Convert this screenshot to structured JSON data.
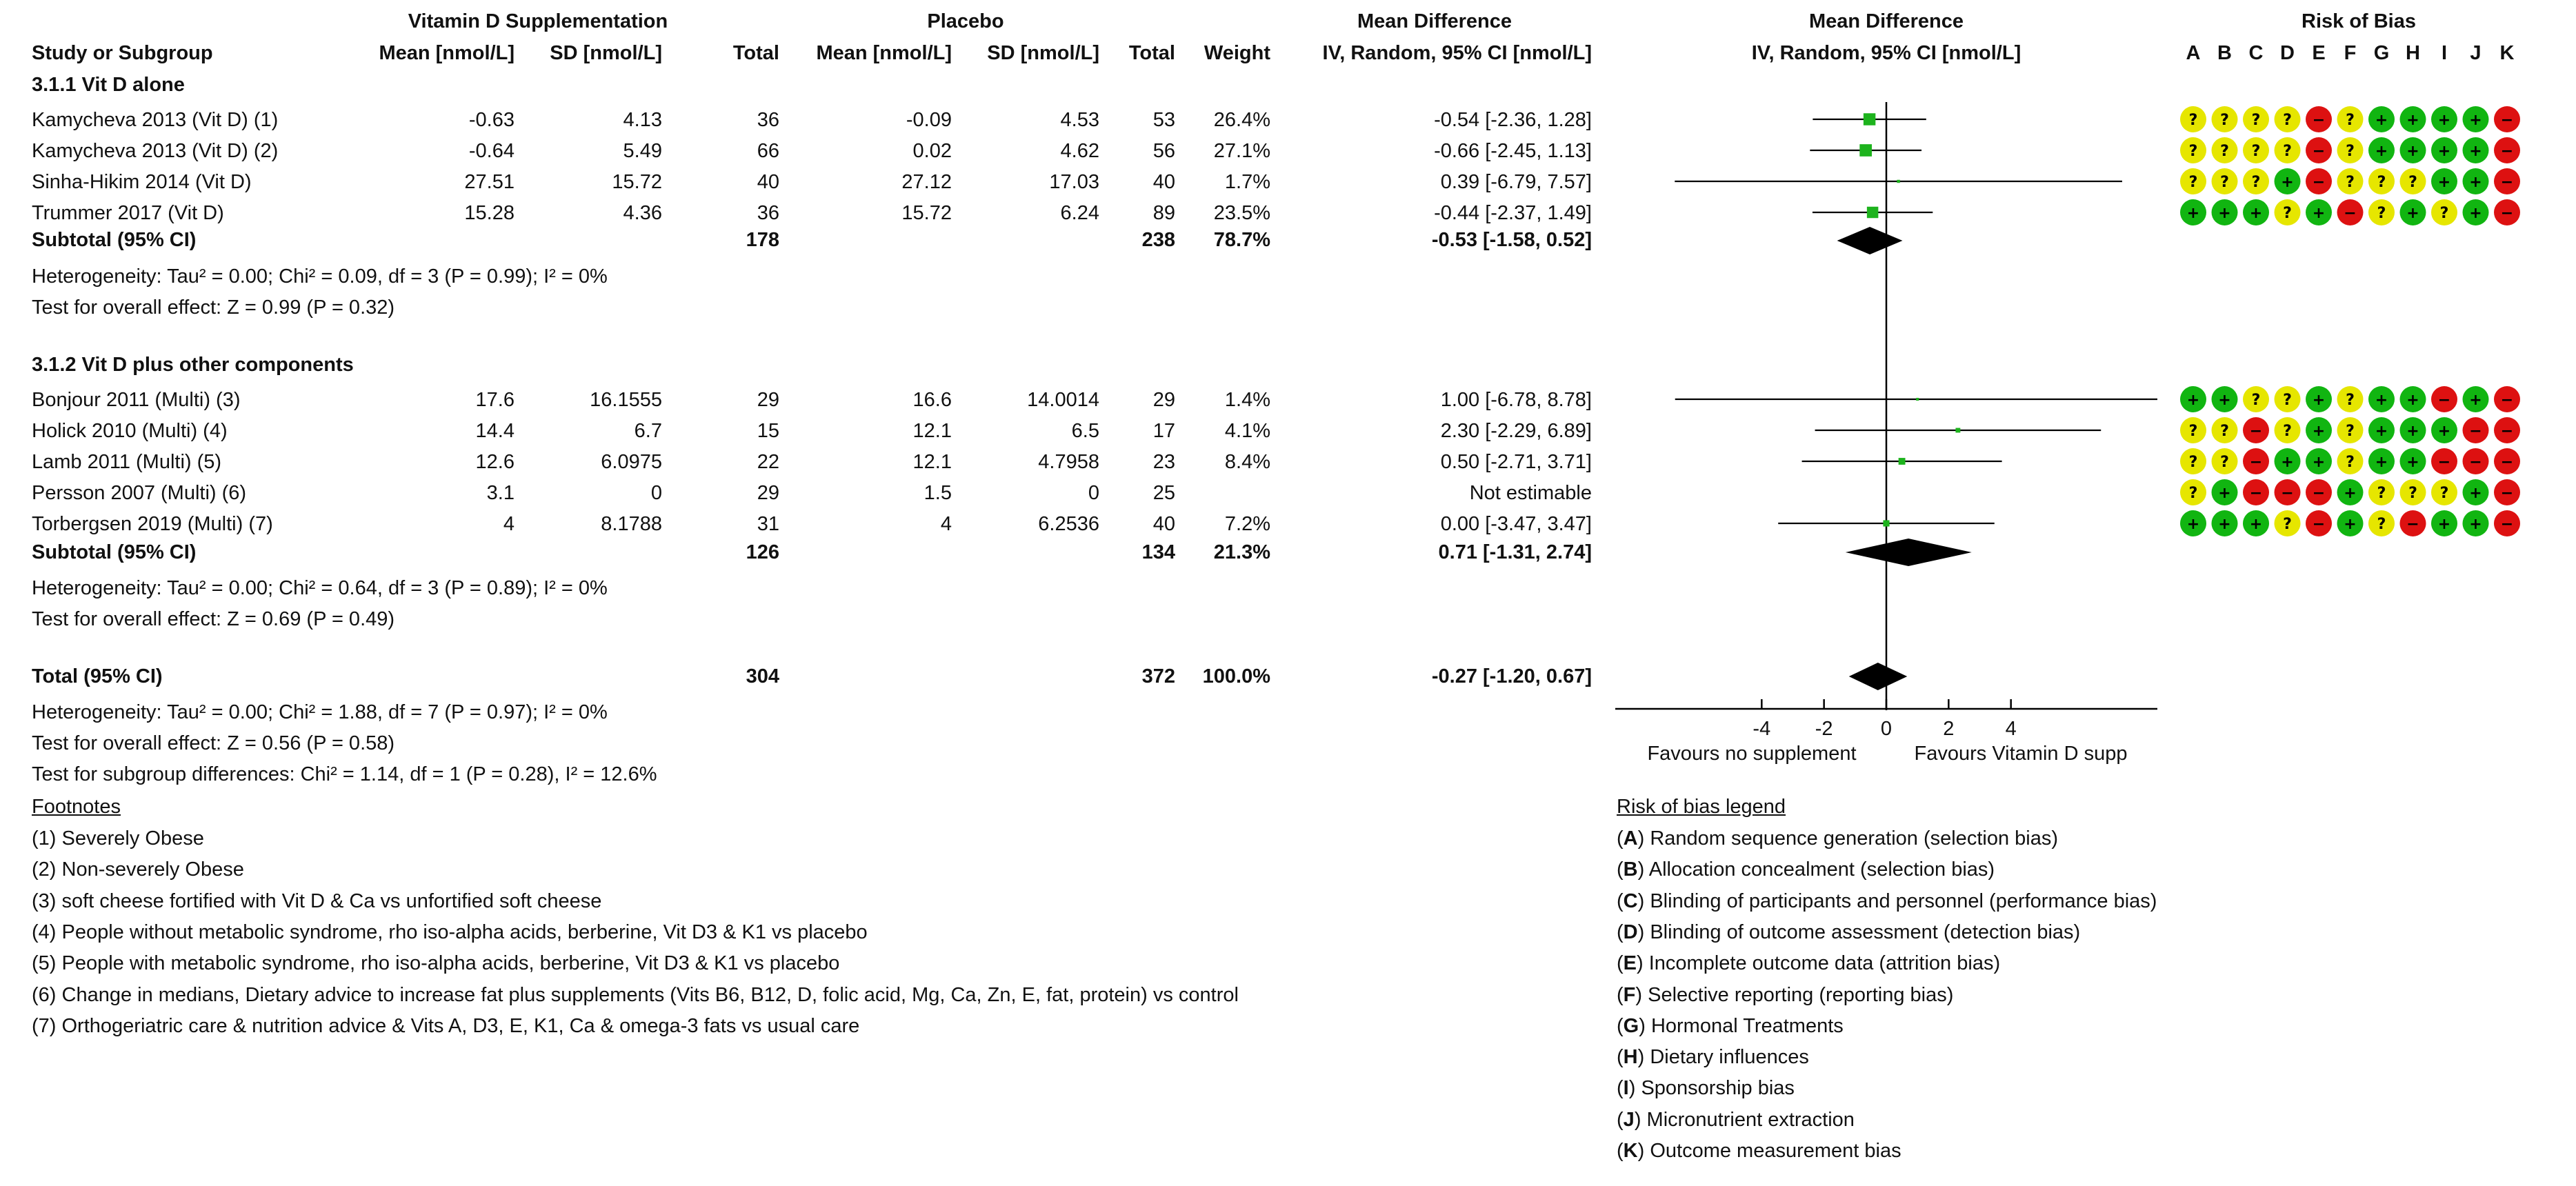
{
  "header": {
    "study_col": "Study or Subgroup",
    "exp_group": "Vitamin D Supplementation",
    "ctl_group": "Placebo",
    "mean": "Mean [nmol/L]",
    "sd": "SD [nmol/L]",
    "total": "Total",
    "weight": "Weight",
    "md_title": "Mean Difference",
    "md_sub": "IV, Random, 95% CI [nmol/L]",
    "plot_title": "Mean Difference",
    "plot_sub": "IV, Random, 95% CI [nmol/L]",
    "rob_title": "Risk of Bias",
    "rob_letters": [
      "A",
      "B",
      "C",
      "D",
      "E",
      "F",
      "G",
      "H",
      "I",
      "J",
      "K"
    ]
  },
  "groups": [
    {
      "title": "3.1.1 Vit D alone",
      "subtotal": {
        "label": "Subtotal (95% CI)",
        "e_total": "178",
        "c_total": "238",
        "weight": "78.7%",
        "ci": "-0.53 [-1.58, 0.52]"
      },
      "heterogeneity": "Heterogeneity: Tau² = 0.00; Chi² = 0.09, df = 3 (P = 0.99); I² = 0%",
      "overall": "Test for overall effect: Z = 0.99 (P = 0.32)"
    },
    {
      "title": "3.1.2 Vit D plus other components",
      "subtotal": {
        "label": "Subtotal (95% CI)",
        "e_total": "126",
        "c_total": "134",
        "weight": "21.3%",
        "ci": "0.71 [-1.31, 2.74]"
      },
      "heterogeneity": "Heterogeneity: Tau² = 0.00; Chi² = 0.64, df = 3 (P = 0.89); I² = 0%",
      "overall": "Test for overall effect: Z = 0.69 (P = 0.49)"
    }
  ],
  "studies": [
    {
      "name": "Kamycheva 2013 (Vit D) (1)",
      "e_mean": "-0.63",
      "e_sd": "4.13",
      "e_total": "36",
      "c_mean": "-0.09",
      "c_sd": "4.53",
      "c_total": "53",
      "weight": "26.4%",
      "ci": "-0.54 [-2.36, 1.28]",
      "rob": [
        "?",
        "?",
        "?",
        "?",
        "-",
        "?",
        "+",
        "+",
        "+",
        "+",
        "-"
      ]
    },
    {
      "name": "Kamycheva 2013 (Vit D) (2)",
      "e_mean": "-0.64",
      "e_sd": "5.49",
      "e_total": "66",
      "c_mean": "0.02",
      "c_sd": "4.62",
      "c_total": "56",
      "weight": "27.1%",
      "ci": "-0.66 [-2.45, 1.13]",
      "rob": [
        "?",
        "?",
        "?",
        "?",
        "-",
        "?",
        "+",
        "+",
        "+",
        "+",
        "-"
      ]
    },
    {
      "name": "Sinha-Hikim 2014 (Vit D)",
      "e_mean": "27.51",
      "e_sd": "15.72",
      "e_total": "40",
      "c_mean": "27.12",
      "c_sd": "17.03",
      "c_total": "40",
      "weight": "1.7%",
      "ci": "0.39 [-6.79, 7.57]",
      "rob": [
        "?",
        "?",
        "?",
        "+",
        "-",
        "?",
        "?",
        "?",
        "+",
        "+",
        "-"
      ]
    },
    {
      "name": "Trummer 2017 (Vit D)",
      "e_mean": "15.28",
      "e_sd": "4.36",
      "e_total": "36",
      "c_mean": "15.72",
      "c_sd": "6.24",
      "c_total": "89",
      "weight": "23.5%",
      "ci": "-0.44 [-2.37, 1.49]",
      "rob": [
        "+",
        "+",
        "+",
        "?",
        "+",
        "-",
        "?",
        "+",
        "?",
        "+",
        "-"
      ]
    },
    {
      "name": "Bonjour 2011 (Multi) (3)",
      "e_mean": "17.6",
      "e_sd": "16.1555",
      "e_total": "29",
      "c_mean": "16.6",
      "c_sd": "14.0014",
      "c_total": "29",
      "weight": "1.4%",
      "ci": "1.00 [-6.78, 8.78]",
      "rob": [
        "+",
        "+",
        "?",
        "?",
        "+",
        "?",
        "+",
        "+",
        "-",
        "+",
        "-"
      ]
    },
    {
      "name": "Holick 2010 (Multi) (4)",
      "e_mean": "14.4",
      "e_sd": "6.7",
      "e_total": "15",
      "c_mean": "12.1",
      "c_sd": "6.5",
      "c_total": "17",
      "weight": "4.1%",
      "ci": "2.30 [-2.29, 6.89]",
      "rob": [
        "?",
        "?",
        "-",
        "?",
        "+",
        "?",
        "+",
        "+",
        "+",
        "-",
        "-"
      ]
    },
    {
      "name": "Lamb 2011 (Multi) (5)",
      "e_mean": "12.6",
      "e_sd": "6.0975",
      "e_total": "22",
      "c_mean": "12.1",
      "c_sd": "4.7958",
      "c_total": "23",
      "weight": "8.4%",
      "ci": "0.50 [-2.71, 3.71]",
      "rob": [
        "?",
        "?",
        "-",
        "+",
        "+",
        "?",
        "+",
        "+",
        "-",
        "-",
        "-"
      ]
    },
    {
      "name": "Persson 2007 (Multi) (6)",
      "e_mean": "3.1",
      "e_sd": "0",
      "e_total": "29",
      "c_mean": "1.5",
      "c_sd": "0",
      "c_total": "25",
      "weight": "",
      "ci": "Not estimable",
      "rob": [
        "?",
        "+",
        "-",
        "-",
        "-",
        "+",
        "?",
        "?",
        "?",
        "+",
        "-"
      ]
    },
    {
      "name": "Torbergsen 2019 (Multi) (7)",
      "e_mean": "4",
      "e_sd": "8.1788",
      "e_total": "31",
      "c_mean": "4",
      "c_sd": "6.2536",
      "c_total": "40",
      "weight": "7.2%",
      "ci": "0.00 [-3.47, 3.47]",
      "rob": [
        "+",
        "+",
        "+",
        "?",
        "-",
        "+",
        "?",
        "-",
        "+",
        "+",
        "-"
      ]
    }
  ],
  "total": {
    "label": "Total (95% CI)",
    "e_total": "304",
    "c_total": "372",
    "weight": "100.0%",
    "ci": "-0.27 [-1.20, 0.67]",
    "heterogeneity": "Heterogeneity: Tau² = 0.00; Chi² = 1.88, df = 7 (P = 0.97); I² = 0%",
    "overall": "Test for overall effect: Z = 0.56 (P = 0.58)",
    "subgroup": "Test for subgroup differences: Chi² = 1.14, df = 1 (P = 0.28), I² = 12.6%"
  },
  "footnotes": {
    "title": "Footnotes",
    "items": [
      "(1) Severely Obese",
      "(2) Non-severely Obese",
      "(3) soft cheese fortified with Vit D & Ca vs unfortified soft cheese",
      "(4) People without metabolic syndrome, rho iso-alpha acids, berberine, Vit D3 & K1 vs placebo",
      "(5) People with metabolic syndrome, rho iso-alpha acids, berberine, Vit D3 & K1 vs placebo",
      "(6) Change in medians, Dietary advice to increase fat plus supplements (Vits B6, B12, D, folic acid, Mg, Ca, Zn, E, fat, protein) vs control",
      "(7) Orthogeriatric care & nutrition advice & Vits A, D3, E, K1, Ca & omega-3 fats vs usual care"
    ]
  },
  "legend": {
    "title": "Risk of bias legend",
    "items": [
      {
        "key": "A",
        "text": "Random sequence generation (selection bias)"
      },
      {
        "key": "B",
        "text": "Allocation concealment (selection bias)"
      },
      {
        "key": "C",
        "text": "Blinding of participants and personnel (performance bias)"
      },
      {
        "key": "D",
        "text": "Blinding of outcome assessment (detection bias)"
      },
      {
        "key": "E",
        "text": "Incomplete outcome data (attrition bias)"
      },
      {
        "key": "F",
        "text": "Selective reporting (reporting bias)"
      },
      {
        "key": "G",
        "text": "Hormonal Treatments"
      },
      {
        "key": "H",
        "text": "Dietary influences"
      },
      {
        "key": "I",
        "text": "Sponsorship bias"
      },
      {
        "key": "J",
        "text": "Micronutrient extraction"
      },
      {
        "key": "K",
        "text": "Outcome measurement bias"
      }
    ]
  },
  "chart_data": {
    "type": "forest",
    "title": "Mean Difference",
    "xlabel_left": "Favours no supplement",
    "xlabel_right": "Favours Vitamin D supp",
    "xlim": [
      -8.7,
      8.7
    ],
    "xticks": [
      -4,
      -2,
      0,
      2,
      4
    ],
    "studies": [
      {
        "name": "Kamycheva 2013 (Vit D) (1)",
        "md": -0.54,
        "lo": -2.36,
        "hi": 1.28,
        "weight": 26.4
      },
      {
        "name": "Kamycheva 2013 (Vit D) (2)",
        "md": -0.66,
        "lo": -2.45,
        "hi": 1.13,
        "weight": 27.1
      },
      {
        "name": "Sinha-Hikim 2014 (Vit D)",
        "md": 0.39,
        "lo": -6.79,
        "hi": 7.57,
        "weight": 1.7
      },
      {
        "name": "Trummer 2017 (Vit D)",
        "md": -0.44,
        "lo": -2.37,
        "hi": 1.49,
        "weight": 23.5
      },
      {
        "name": "Bonjour 2011 (Multi) (3)",
        "md": 1.0,
        "lo": -6.78,
        "hi": 8.78,
        "weight": 1.4
      },
      {
        "name": "Holick 2010 (Multi) (4)",
        "md": 2.3,
        "lo": -2.29,
        "hi": 6.89,
        "weight": 4.1
      },
      {
        "name": "Lamb 2011 (Multi) (5)",
        "md": 0.5,
        "lo": -2.71,
        "hi": 3.71,
        "weight": 8.4
      },
      {
        "name": "Persson 2007 (Multi) (6)",
        "md": null,
        "lo": null,
        "hi": null,
        "weight": null
      },
      {
        "name": "Torbergsen 2019 (Multi) (7)",
        "md": 0.0,
        "lo": -3.47,
        "hi": 3.47,
        "weight": 7.2
      }
    ],
    "subtotals": [
      {
        "name": "Subtotal 3.1.1",
        "md": -0.53,
        "lo": -1.58,
        "hi": 0.52
      },
      {
        "name": "Subtotal 3.1.2",
        "md": 0.71,
        "lo": -1.31,
        "hi": 2.74
      }
    ],
    "total": {
      "md": -0.27,
      "lo": -1.2,
      "hi": 0.67
    }
  }
}
